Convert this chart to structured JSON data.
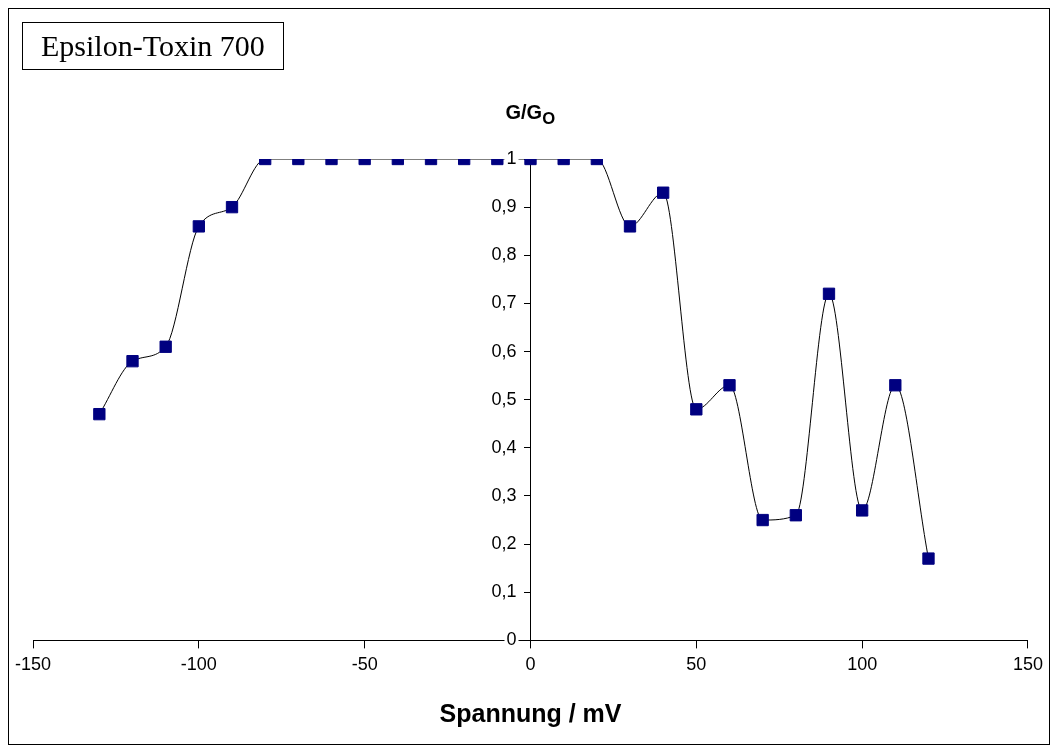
{
  "chart_data": {
    "type": "line",
    "title": "Epsilon-Toxin 700",
    "xlabel": "Spannung / mV",
    "ylabel": "G/G$_{O}$",
    "x": [
      -130,
      -120,
      -110,
      -100,
      -90,
      -80,
      -70,
      -60,
      -50,
      -40,
      -30,
      -20,
      -10,
      0,
      10,
      20,
      30,
      40,
      50,
      60,
      70,
      80,
      90,
      100,
      110,
      120
    ],
    "series": [
      {
        "color": "#000080",
        "values": [
          0.47,
          0.58,
          0.61,
          0.86,
          0.9,
          1,
          1,
          1,
          1,
          1,
          1,
          1,
          1,
          1,
          1,
          1,
          0.86,
          0.93,
          0.48,
          0.53,
          0.25,
          0.26,
          0.72,
          0.27,
          0.53,
          0.17
        ]
      }
    ],
    "xlim": [
      -150,
      150
    ],
    "xticks": [
      -150,
      -100,
      -50,
      0,
      50,
      100,
      150
    ],
    "ylim": [
      0,
      1
    ],
    "yticks": [
      0,
      {
        "value": 0.1,
        "label": "0,1"
      },
      {
        "value": 0.2,
        "label": "0,2"
      },
      {
        "value": 0.3,
        "label": "0,3"
      },
      {
        "value": 0.4,
        "label": "0,4"
      },
      {
        "value": 0.5,
        "label": "0,5"
      },
      {
        "value": 0.6,
        "label": "0,6"
      },
      {
        "value": 0.7,
        "label": "0,7"
      },
      {
        "value": 0.8,
        "label": "0,8"
      },
      {
        "value": 0.9,
        "label": "0,9"
      },
      1
    ],
    "grid": false,
    "legend": false,
    "marker": "square",
    "line_style": "solid"
  }
}
